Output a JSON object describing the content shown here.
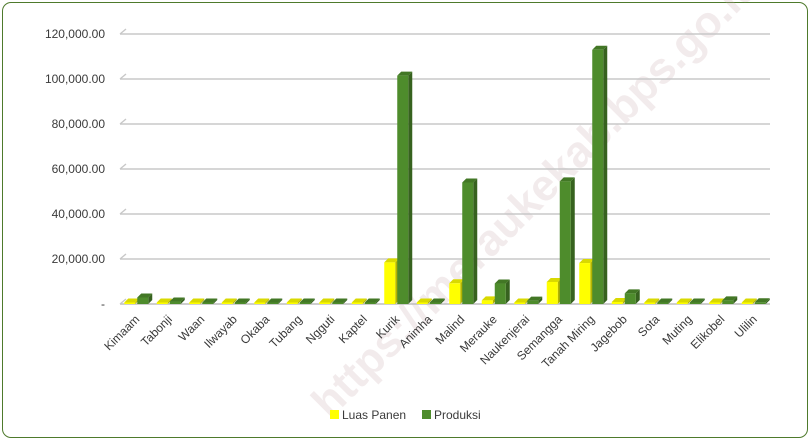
{
  "watermark": "https://meraukekab.bps.go.id",
  "chart_data": {
    "type": "bar",
    "categories": [
      "Kimaam",
      "Tabonji",
      "Waan",
      "Ilwayab",
      "Okaba",
      "Tubang",
      "Ngguti",
      "Kaptel",
      "Kurik",
      "Animha",
      "Malind",
      "Merauke",
      "Naukenjerai",
      "Semangga",
      "Tanah Miring",
      "Jagebob",
      "Sota",
      "Muting",
      "Elikobel",
      "Ulilin"
    ],
    "series": [
      {
        "name": "Luas Panen",
        "color": "#ffff00",
        "values": [
          600,
          300,
          150,
          120,
          100,
          60,
          60,
          100,
          18500,
          30,
          9200,
          1600,
          400,
          9800,
          18200,
          900,
          60,
          200,
          400,
          200
        ]
      },
      {
        "name": "Produksi",
        "color": "#4e8c2c",
        "values": [
          2900,
          1100,
          650,
          450,
          350,
          150,
          200,
          450,
          101500,
          120,
          54000,
          9100,
          1500,
          54500,
          113000,
          4700,
          150,
          600,
          1600,
          800
        ]
      }
    ],
    "ylim": [
      0,
      120000
    ],
    "yticks": [
      0,
      20000,
      40000,
      60000,
      80000,
      100000,
      120000
    ],
    "ytick_labels": [
      "-",
      "20,000.00",
      "40,000.00",
      "60,000.00",
      "80,000.00",
      "100,000.00",
      "120,000.00"
    ],
    "grid": true,
    "legend_position": "bottom"
  }
}
